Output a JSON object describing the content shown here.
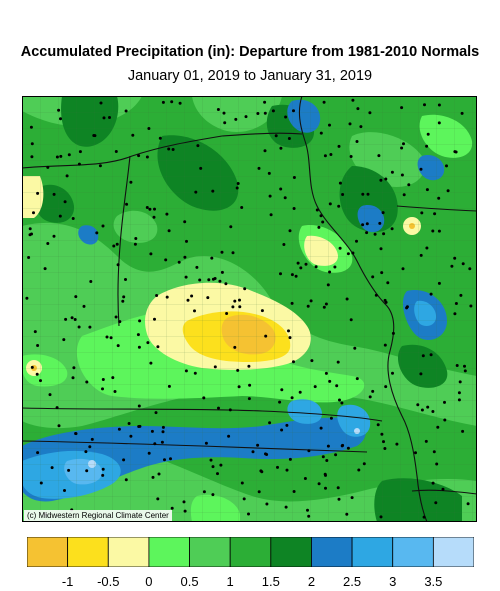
{
  "title": "Accumulated Precipitation (in): Departure from 1981-2010 Normals",
  "subtitle": "January 01, 2019 to January 31, 2019",
  "credit": "(c) Midwestern Regional Climate Center",
  "legend": {
    "colors": [
      "#f5c232",
      "#fce01d",
      "#fbf9a4",
      "#5df55c",
      "#4fcd56",
      "#2cae36",
      "#0e8424",
      "#1c7cc6",
      "#2ea7e3",
      "#58b8f0",
      "#b6dcfa"
    ],
    "tick_labels": [
      "-1",
      "-0.5",
      "0",
      "0.5",
      "1",
      "1.5",
      "2",
      "2.5",
      "3",
      "3.5"
    ]
  },
  "map_colors": {
    "background": "#2cae36",
    "light_green": "#4fcd56",
    "bright_green": "#5df55c",
    "dark_green": "#0e8424",
    "pale_yellow": "#fbf9a4",
    "yellow": "#fce01d",
    "orange": "#f5c232",
    "blue": "#1c7cc6",
    "mid_blue": "#2ea7e3",
    "light_blue": "#58b8f0",
    "pale_blue": "#b6dcfa"
  }
}
